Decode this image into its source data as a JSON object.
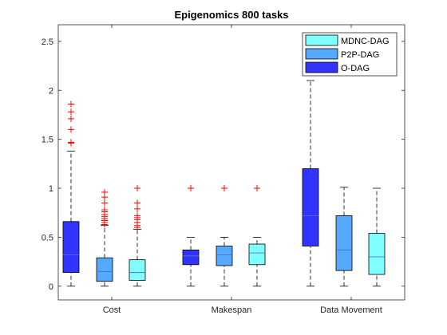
{
  "chart_data": {
    "type": "boxplot",
    "title": "Epigenomics 800 tasks",
    "xlabel": "",
    "ylabel": "",
    "ylim": [
      -0.14,
      2.67
    ],
    "yticks": [
      0,
      0.5,
      1,
      1.5,
      2,
      2.5
    ],
    "ytick_labels": [
      "0",
      "0.5",
      "1",
      "1.5",
      "2",
      "2.5"
    ],
    "categories": [
      "Cost",
      "Makespan",
      "Data Movement"
    ],
    "grid": false,
    "legend_position": "top-right",
    "legend": [
      {
        "name": "MDNC-DAG",
        "color": "#80ffff"
      },
      {
        "name": "P2P-DAG",
        "color": "#55aaff"
      },
      {
        "name": "O-DAG",
        "color": "#3333ff"
      }
    ],
    "outlier_color": "#ff0000",
    "boxes": [
      {
        "category": "Cost",
        "series": "O-DAG",
        "color": "#3333ff",
        "whisker_low": 0,
        "q1": 0.14,
        "median": 0.32,
        "q3": 0.66,
        "whisker_high": 1.38,
        "outliers": [
          1.46,
          1.47,
          1.6,
          1.71,
          1.78,
          1.86
        ]
      },
      {
        "category": "Cost",
        "series": "P2P-DAG",
        "color": "#55aaff",
        "whisker_low": 0,
        "q1": 0.05,
        "median": 0.15,
        "q3": 0.29,
        "whisker_high": 0.62,
        "outliers": [
          0.63,
          0.65,
          0.67,
          0.69,
          0.71,
          0.73,
          0.76,
          0.78,
          0.85,
          0.91,
          0.96
        ]
      },
      {
        "category": "Cost",
        "series": "MDNC-DAG",
        "color": "#80ffff",
        "whisker_low": 0,
        "q1": 0.06,
        "median": 0.14,
        "q3": 0.27,
        "whisker_high": 0.58,
        "outliers": [
          0.6,
          0.62,
          0.65,
          0.68,
          0.7,
          0.72,
          0.79,
          0.85,
          1.0
        ]
      },
      {
        "category": "Makespan",
        "series": "O-DAG",
        "color": "#3333ff",
        "whisker_low": 0,
        "q1": 0.22,
        "median": 0.31,
        "q3": 0.37,
        "whisker_high": 0.5,
        "outliers": [
          1.0
        ]
      },
      {
        "category": "Makespan",
        "series": "P2P-DAG",
        "color": "#55aaff",
        "whisker_low": 0,
        "q1": 0.21,
        "median": 0.32,
        "q3": 0.41,
        "whisker_high": 0.5,
        "outliers": [
          1.0
        ]
      },
      {
        "category": "Makespan",
        "series": "MDNC-DAG",
        "color": "#80ffff",
        "whisker_low": 0,
        "q1": 0.22,
        "median": 0.34,
        "q3": 0.43,
        "whisker_high": 0.5,
        "outliers": [
          1.0
        ]
      },
      {
        "category": "Data Movement",
        "series": "O-DAG",
        "color": "#3333ff",
        "whisker_low": 0,
        "q1": 0.41,
        "median": 0.72,
        "q3": 1.2,
        "whisker_high": 2.1,
        "outliers": []
      },
      {
        "category": "Data Movement",
        "series": "P2P-DAG",
        "color": "#55aaff",
        "whisker_low": 0,
        "q1": 0.16,
        "median": 0.37,
        "q3": 0.72,
        "whisker_high": 1.01,
        "outliers": []
      },
      {
        "category": "Data Movement",
        "series": "MDNC-DAG",
        "color": "#80ffff",
        "whisker_low": 0,
        "q1": 0.12,
        "median": 0.3,
        "q3": 0.54,
        "whisker_high": 1.0,
        "outliers": []
      }
    ]
  }
}
